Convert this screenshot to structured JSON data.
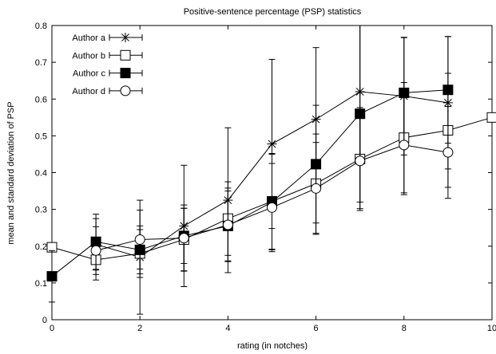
{
  "chart_data": {
    "type": "line",
    "title": "Positive-sentence percentage (PSP) statistics",
    "xlabel": "rating (in notches)",
    "ylabel": "mean and standard deviation of PSP",
    "xlim": [
      0,
      10
    ],
    "ylim": [
      0,
      0.8
    ],
    "x_ticks": [
      "0",
      "2",
      "4",
      "6",
      "8",
      "10"
    ],
    "y_ticks": [
      "0",
      "0.1",
      "0.2",
      "0.3",
      "0.4",
      "0.5",
      "0.6",
      "0.7",
      "0.8"
    ],
    "grid": false,
    "legend_position": "top-left",
    "series": [
      {
        "name": "Author a",
        "marker": "star",
        "x": [
          1,
          2,
          3,
          4,
          5,
          6,
          7,
          8,
          9
        ],
        "y": [
          0.205,
          0.17,
          0.255,
          0.325,
          0.478,
          0.545,
          0.62,
          0.608,
          0.59
        ],
        "err": [
          0.07,
          0.155,
          0.165,
          0.197,
          0.23,
          0.195,
          0.18,
          0.16,
          0.18
        ]
      },
      {
        "name": "Author b",
        "marker": "open-square",
        "x": [
          0,
          1,
          2,
          3,
          4,
          5,
          6,
          7,
          8,
          9,
          10
        ],
        "y": [
          0.197,
          0.163,
          0.18,
          0.218,
          0.275,
          0.322,
          0.37,
          0.437,
          0.495,
          0.515,
          0.55
        ],
        "err": [
          0,
          0.055,
          0.065,
          0.085,
          0.1,
          0.13,
          0.135,
          0.14,
          0.15,
          0.155,
          0
        ]
      },
      {
        "name": "Author c",
        "marker": "filled-square",
        "x": [
          0,
          1,
          2,
          3,
          4,
          5,
          6,
          7,
          8,
          9
        ],
        "y": [
          0.118,
          0.212,
          0.19,
          0.228,
          0.255,
          0.32,
          0.423,
          0.56,
          0.617,
          0.625
        ],
        "err": [
          0.07,
          0.075,
          0.065,
          0.075,
          0.095,
          0.13,
          0.16,
          0.24,
          0.15,
          0.145
        ]
      },
      {
        "name": "Author d",
        "marker": "open-circle",
        "x": [
          1,
          2,
          3,
          4,
          5,
          6,
          7,
          8,
          9
        ],
        "y": [
          0.188,
          0.218,
          0.222,
          0.258,
          0.305,
          0.357,
          0.432,
          0.475,
          0.455
        ],
        "err": [
          0.065,
          0.08,
          0.09,
          0.1,
          0.12,
          0.125,
          0.13,
          0.135,
          0.125
        ]
      }
    ]
  }
}
